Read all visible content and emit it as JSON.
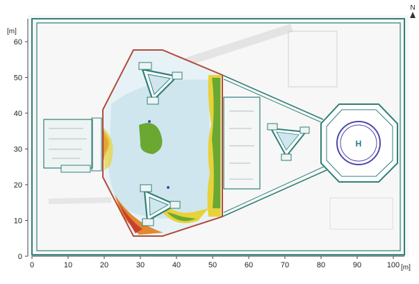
{
  "map": {
    "x_unit": "[m]",
    "y_unit": "[m]",
    "x_ticks": [
      0,
      10,
      20,
      30,
      40,
      50,
      60,
      70,
      80,
      90,
      100
    ],
    "y_ticks": [
      0,
      10,
      20,
      30,
      40,
      50,
      60
    ],
    "north_label": "N",
    "helipad_label": "H",
    "colors": {
      "outline": "#2f7f78",
      "hull": "#b34a3a",
      "light_blue": "#cfe6ef",
      "pale_blue": "#e6f2f6",
      "green": "#6aa832",
      "yellow": "#e8d23a",
      "orange": "#e0892d",
      "red": "#c8402f",
      "helipad_ring": "#4c46a8"
    }
  }
}
